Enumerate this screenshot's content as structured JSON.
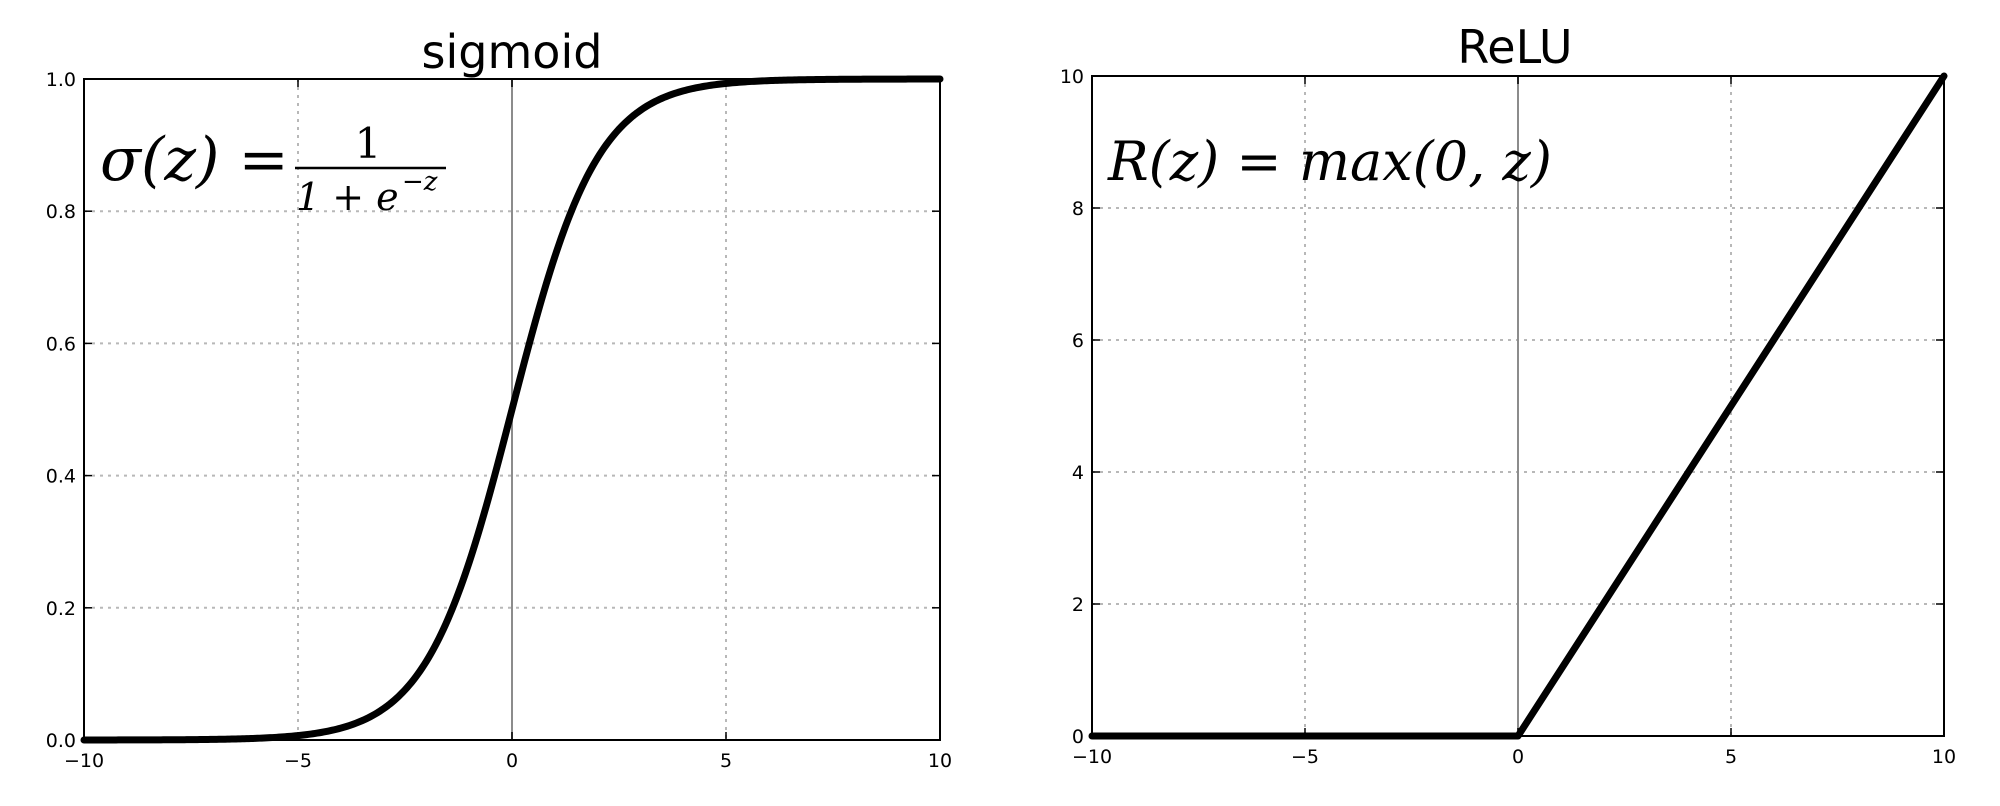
{
  "chart_data": [
    {
      "type": "line",
      "title": "sigmoid",
      "formula": {
        "lhs": "σ(z) =",
        "numerator": "1",
        "denominator": "1 + e",
        "exponent": "−z"
      },
      "xlim": [
        -10,
        10
      ],
      "ylim": [
        0,
        1
      ],
      "x_ticks": [
        -10,
        -5,
        0,
        5,
        10
      ],
      "x_tick_labels": [
        "−10",
        "−5",
        "0",
        "5",
        "10"
      ],
      "y_ticks": [
        0,
        0.2,
        0.4,
        0.6,
        0.8,
        1.0
      ],
      "y_tick_labels": [
        "0.0",
        "0.2",
        "0.4",
        "0.6",
        "0.8",
        "1.0"
      ],
      "grid": true,
      "vertical_line_x": 0,
      "series": [
        {
          "x": [
            -10,
            -8,
            -6,
            -5,
            -4,
            -3,
            -2,
            -1,
            0,
            1,
            2,
            3,
            4,
            5,
            6,
            8,
            10
          ],
          "y": [
            0.0,
            0.0003,
            0.0025,
            0.0067,
            0.018,
            0.047,
            0.119,
            0.269,
            0.5,
            0.731,
            0.881,
            0.953,
            0.982,
            0.993,
            0.9975,
            0.9997,
            1.0
          ]
        }
      ]
    },
    {
      "type": "line",
      "title": "ReLU",
      "formula": {
        "text": "R(z) = max(0,  z)"
      },
      "xlim": [
        -10,
        10
      ],
      "ylim": [
        0,
        10
      ],
      "x_ticks": [
        -10,
        -5,
        0,
        5,
        10
      ],
      "x_tick_labels": [
        "−10",
        "−5",
        "0",
        "5",
        "10"
      ],
      "y_ticks": [
        0,
        2,
        4,
        6,
        8,
        10
      ],
      "y_tick_labels": [
        "0",
        "2",
        "4",
        "6",
        "8",
        "10"
      ],
      "grid": true,
      "vertical_line_x": 0,
      "series": [
        {
          "x": [
            -10,
            0,
            10
          ],
          "y": [
            0,
            0,
            10
          ]
        }
      ]
    }
  ]
}
